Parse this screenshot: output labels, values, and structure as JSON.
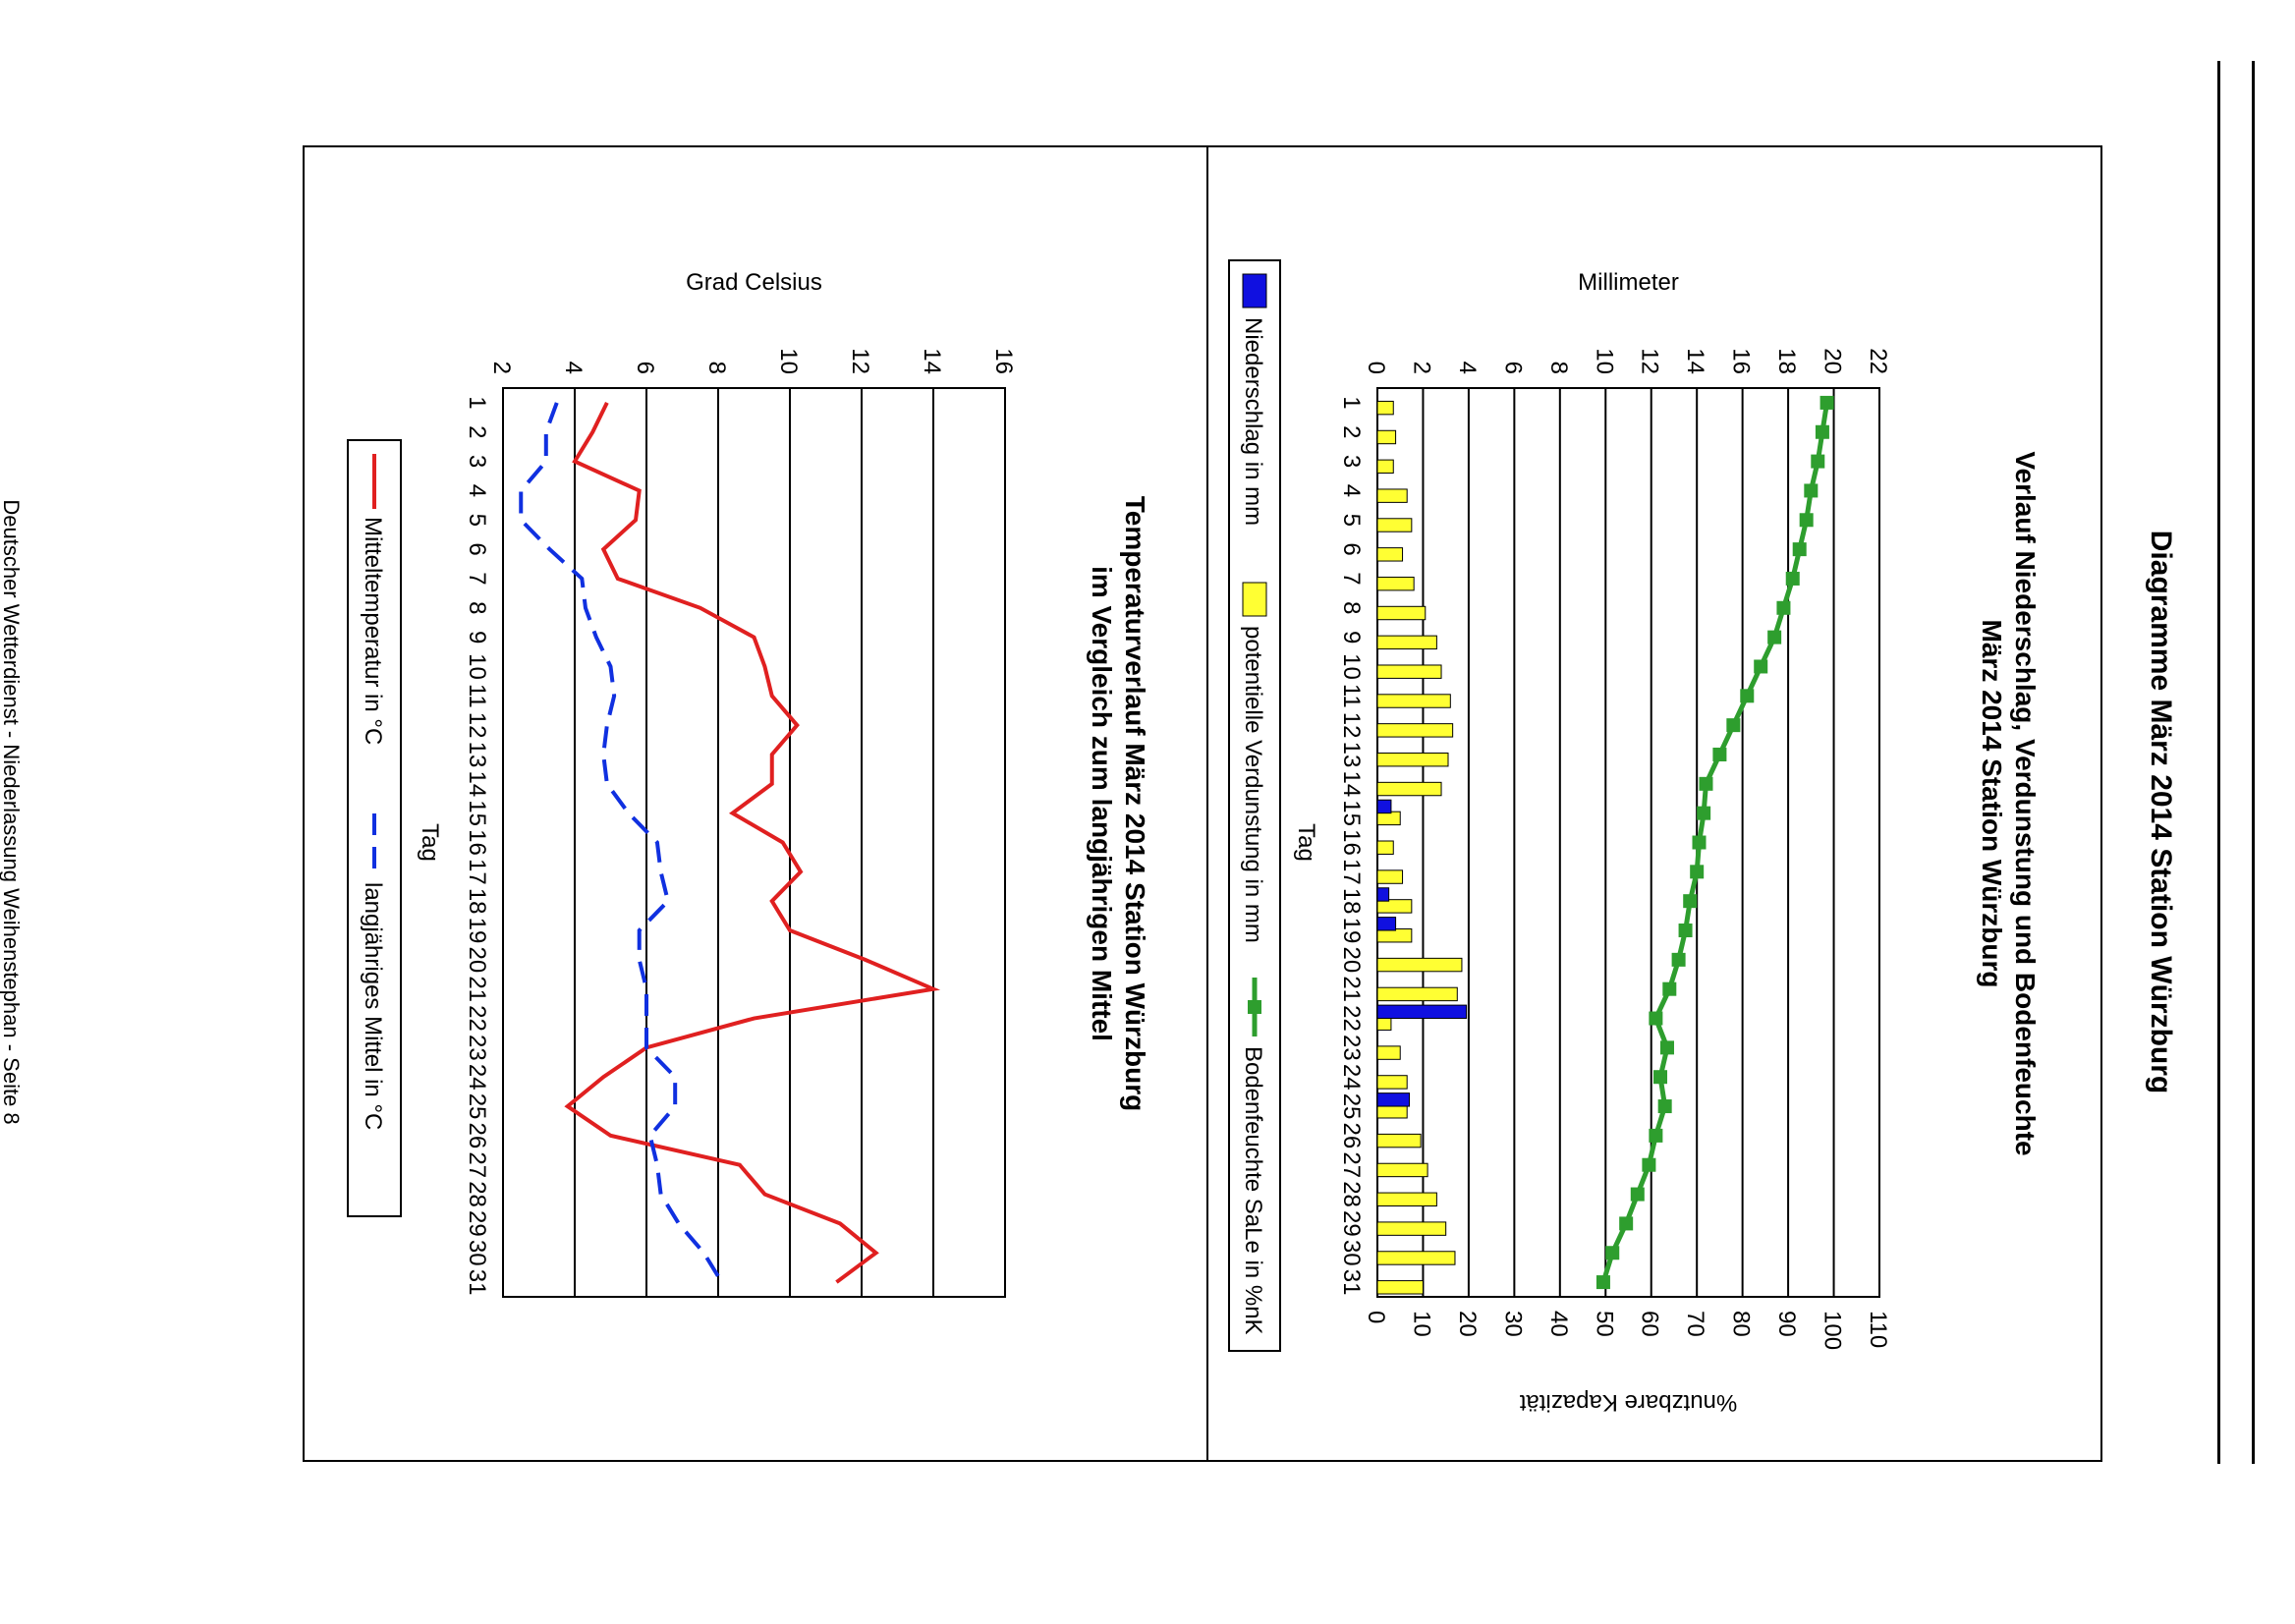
{
  "page": {
    "heading": "Diagramme März 2014 Station Würzburg",
    "footer": "Deutscher Wetterdienst - Niederlassung Weihenstephan - Seite 8"
  },
  "chart_data": [
    {
      "type": "bar",
      "title": "Verlauf Niederschlag, Verdunstung und Bodenfeuchte",
      "subtitle": "März 2014 Station Würzburg",
      "xlabel": "Tag",
      "ylabel": "Millimeter",
      "ylabel2": "%nutzbare Kapazität",
      "ylim": [
        0,
        22
      ],
      "ylim2": [
        0,
        110
      ],
      "yticks": [
        0,
        2,
        4,
        6,
        8,
        10,
        12,
        14,
        16,
        18,
        20,
        22
      ],
      "yticks2": [
        0,
        10,
        20,
        30,
        40,
        50,
        60,
        70,
        80,
        90,
        100,
        110
      ],
      "categories": [
        "1",
        "2",
        "3",
        "4",
        "5",
        "6",
        "7",
        "8",
        "9",
        "10",
        "11",
        "12",
        "13",
        "14",
        "15",
        "16",
        "17",
        "18",
        "19",
        "20",
        "21",
        "22",
        "23",
        "24",
        "25",
        "26",
        "27",
        "28",
        "29",
        "30",
        "31"
      ],
      "series": [
        {
          "name": "Niederschlag in mm",
          "kind": "bar",
          "color": "#1010e0",
          "values": [
            0,
            0,
            0,
            0,
            0,
            0,
            0,
            0,
            0,
            0,
            0,
            0,
            0,
            0,
            0.6,
            0,
            0,
            0.5,
            0.8,
            0,
            0,
            3.9,
            0,
            0,
            1.4,
            0,
            0,
            0,
            0,
            0,
            0
          ]
        },
        {
          "name": "potentielle Verdunstung in mm",
          "kind": "bar",
          "color": "#ffff33",
          "values": [
            0.7,
            0.8,
            0.7,
            1.3,
            1.5,
            1.1,
            1.6,
            2.1,
            2.6,
            2.8,
            3.2,
            3.3,
            3.1,
            2.8,
            1.0,
            0.7,
            1.1,
            1.5,
            1.5,
            3.7,
            3.5,
            0.6,
            1.0,
            1.3,
            1.3,
            1.9,
            2.2,
            2.6,
            3.0,
            3.4,
            2.0
          ]
        },
        {
          "name": "Bodenfeuchte SaLe in %nK",
          "kind": "line",
          "axis": "secondary",
          "color": "#2e9e2e",
          "values": [
            98.5,
            97.5,
            96.5,
            95,
            94,
            92.5,
            91,
            89,
            87,
            84,
            81,
            78,
            75,
            72,
            71.5,
            70.5,
            70,
            68.5,
            67.5,
            66,
            64,
            61,
            63.5,
            62,
            63,
            61,
            59.5,
            57,
            54.5,
            51.5,
            49.5
          ]
        }
      ]
    },
    {
      "type": "line",
      "title": "Temperaturverlauf März 2014 Station Würzburg",
      "subtitle": "im Vergleich zum langjährigen Mittel",
      "xlabel": "Tag",
      "ylabel": "Grad Celsius",
      "ylim": [
        2,
        16
      ],
      "yticks": [
        2,
        4,
        6,
        8,
        10,
        12,
        14,
        16
      ],
      "categories": [
        "1",
        "2",
        "3",
        "4",
        "5",
        "6",
        "7",
        "8",
        "9",
        "10",
        "11",
        "12",
        "13",
        "14",
        "15",
        "16",
        "17",
        "18",
        "19",
        "20",
        "21",
        "22",
        "23",
        "24",
        "25",
        "26",
        "27",
        "28",
        "29",
        "30",
        "31"
      ],
      "series": [
        {
          "name": "Mitteltemperatur in °C",
          "color": "#e02020",
          "dash": false,
          "values": [
            4.9,
            4.5,
            4.0,
            5.8,
            5.7,
            4.8,
            5.2,
            7.5,
            9.0,
            9.3,
            9.5,
            10.2,
            9.5,
            9.5,
            8.4,
            9.8,
            10.3,
            9.5,
            10.0,
            12.1,
            14.0,
            9.0,
            6.0,
            4.8,
            3.8,
            5.0,
            8.6,
            9.3,
            11.4,
            12.4,
            11.3
          ]
        },
        {
          "name": "langjähriges Mittel in °C",
          "color": "#1030e0",
          "dash": true,
          "values": [
            3.5,
            3.2,
            3.2,
            2.5,
            2.5,
            3.3,
            4.2,
            4.3,
            4.6,
            5.0,
            5.1,
            4.9,
            4.8,
            4.9,
            5.5,
            6.3,
            6.4,
            6.6,
            5.8,
            5.8,
            6.0,
            6.0,
            6.0,
            6.8,
            6.8,
            6.1,
            6.3,
            6.4,
            6.9,
            7.6,
            8.1
          ]
        }
      ]
    }
  ]
}
